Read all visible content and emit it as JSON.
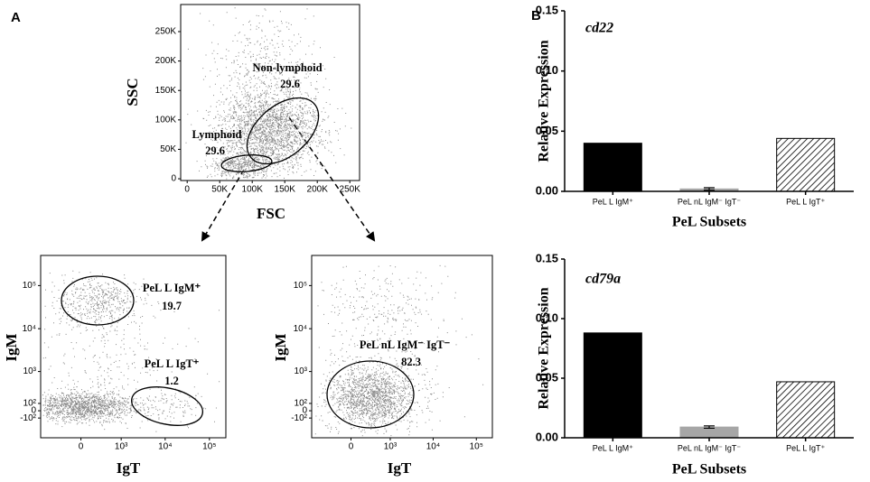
{
  "panel_labels": {
    "a": "A",
    "b": "B"
  },
  "flow_plots": [
    {
      "x_label": "FSC",
      "y_label": "SSC",
      "xscale": "linear",
      "yscale": "linear",
      "xlim": [
        -10000,
        265000
      ],
      "ylim": [
        -3000,
        296000
      ],
      "xticks": [
        0,
        {
          "value": 50000,
          "label": "50K"
        },
        {
          "value": 100000,
          "label": "100K"
        },
        {
          "value": 150000,
          "label": "150K"
        },
        {
          "value": 200000,
          "label": "200K"
        },
        {
          "value": 250000,
          "label": "250K"
        }
      ],
      "yticks": [
        0,
        {
          "value": 50000,
          "label": "50K"
        },
        {
          "value": 100000,
          "label": "100K"
        },
        {
          "value": 150000,
          "label": "150K"
        },
        {
          "value": 200000,
          "label": "200K"
        },
        {
          "value": 250000,
          "label": "250K"
        }
      ],
      "gates": [
        {
          "name": "Non-lymphoid",
          "percent": 29.6
        },
        {
          "name": "Lymphoid",
          "percent": 29.6
        }
      ]
    },
    {
      "x_label": "IgT",
      "y_label": "IgM",
      "xscale": "biexponential",
      "yscale": "biexponential",
      "xlim": [
        -1000,
        235000
      ],
      "ylim": [
        -500,
        500000
      ],
      "xticks": [
        0,
        {
          "value": 1000,
          "label": "10³"
        },
        {
          "value": 10000,
          "label": "10⁴"
        },
        {
          "value": 100000,
          "label": "10⁵"
        }
      ],
      "yticks": [
        {
          "value": 100000,
          "label": "10⁵"
        },
        {
          "value": 10000,
          "label": "10⁴"
        },
        {
          "value": 1000,
          "label": "10³"
        },
        {
          "value": 100,
          "label": "10²"
        },
        0,
        {
          "value": -100,
          "label": "-10²"
        }
      ],
      "gates": [
        {
          "name": "PeL L IgM⁺",
          "percent": 19.7
        },
        {
          "name": "PeL L IgT⁺",
          "percent": 1.2
        }
      ]
    },
    {
      "x_label": "IgT",
      "y_label": "IgM",
      "xscale": "biexponential",
      "yscale": "biexponential",
      "xlim": [
        -1000,
        235000
      ],
      "ylim": [
        -500,
        500000
      ],
      "xticks": [
        0,
        {
          "value": 1000,
          "label": "10³"
        },
        {
          "value": 10000,
          "label": "10⁴"
        },
        {
          "value": 100000,
          "label": "10⁵"
        }
      ],
      "yticks": [
        {
          "value": 100000,
          "label": "10⁵"
        },
        {
          "value": 10000,
          "label": "10⁴"
        },
        {
          "value": 1000,
          "label": "10³"
        },
        {
          "value": 100,
          "label": "10²"
        },
        0,
        {
          "value": -100,
          "label": "-10²"
        }
      ],
      "gates": [
        {
          "name": "PeL nL IgM⁻ IgT⁻",
          "percent": 82.3
        }
      ]
    }
  ],
  "chart_data": [
    {
      "type": "bar",
      "title": "cd22",
      "x_label": "PeL Subsets",
      "y_label": "Relative Expression",
      "categories": [
        "PeL L IgM⁺",
        "PeL nL IgM⁻ IgT⁻",
        "PeL L IgT⁺"
      ],
      "values": [
        0.04,
        0.002,
        0.044
      ],
      "errors": [
        null,
        0.001,
        null
      ],
      "colors": [
        "#000000",
        "#a6a6a6",
        "#000000"
      ],
      "fills": [
        "solid",
        "solid",
        "hatch"
      ],
      "ylim": [
        0,
        0.15
      ],
      "yticks": [
        {
          "value": 0,
          "label": "0.00"
        },
        {
          "value": 0.05,
          "label": "0.05"
        },
        {
          "value": 0.1,
          "label": "0.10"
        },
        {
          "value": 0.15,
          "label": "0.15"
        }
      ]
    },
    {
      "type": "bar",
      "title": "cd79a",
      "x_label": "PeL Subsets",
      "y_label": "Relative Expression",
      "categories": [
        "PeL L IgM⁺",
        "PeL nL IgM⁻ IgT⁻",
        "PeL L IgT⁺"
      ],
      "values": [
        0.088,
        0.009,
        0.047
      ],
      "errors": [
        null,
        0.001,
        null
      ],
      "colors": [
        "#000000",
        "#a6a6a6",
        "#000000"
      ],
      "fills": [
        "solid",
        "solid",
        "hatch"
      ],
      "ylim": [
        0,
        0.15
      ],
      "yticks": [
        {
          "value": 0,
          "label": "0.00"
        },
        {
          "value": 0.05,
          "label": "0.05"
        },
        {
          "value": 0.1,
          "label": "0.10"
        },
        {
          "value": 0.15,
          "label": "0.15"
        }
      ]
    }
  ]
}
